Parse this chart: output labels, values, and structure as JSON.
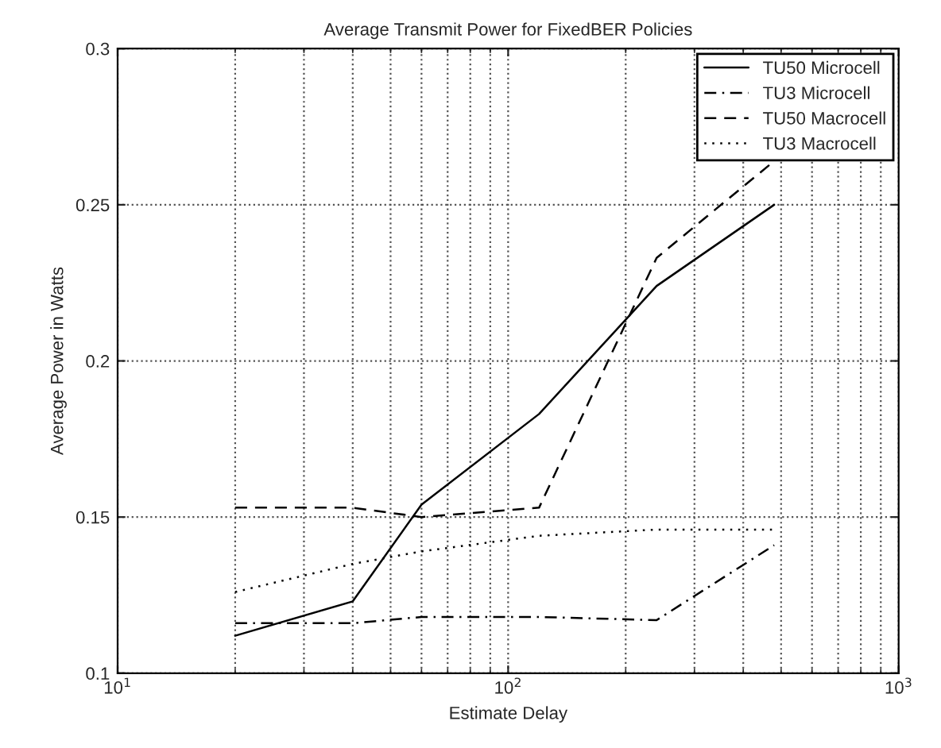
{
  "chart_data": {
    "type": "line",
    "title": "Average Transmit Power for FixedBER Policies",
    "xlabel": "Estimate Delay",
    "ylabel": "Average Power in Watts",
    "x": [
      20,
      40,
      60,
      120,
      240,
      480
    ],
    "series": [
      {
        "name": "TU50 Microcell",
        "color": "#000000",
        "line_style": "solid",
        "values": [
          0.112,
          0.123,
          0.154,
          0.183,
          0.224,
          0.25
        ]
      },
      {
        "name": "TU3 Microcell",
        "color": "#000000",
        "line_style": "dashdot",
        "values": [
          0.116,
          0.116,
          0.118,
          0.118,
          0.117,
          0.141
        ]
      },
      {
        "name": "TU50 Macrocell",
        "color": "#000000",
        "line_style": "dashed",
        "values": [
          0.153,
          0.153,
          0.15,
          0.153,
          0.233,
          0.264
        ]
      },
      {
        "name": "TU3 Macrocell",
        "color": "#000000",
        "line_style": "dotted",
        "values": [
          0.126,
          0.135,
          0.139,
          0.144,
          0.146,
          0.146
        ]
      }
    ],
    "log": "x",
    "xlim": [
      10,
      1000
    ],
    "xticks": [
      {
        "value": 10,
        "label": "10$^{1}$"
      },
      {
        "value": 100,
        "label": "10$^{2}$"
      },
      {
        "value": 1000,
        "label": "10$^{3}$"
      }
    ],
    "ylim": [
      0.1,
      0.3
    ],
    "yticks": [
      0.1,
      0.15,
      0.2,
      0.25,
      0.3
    ],
    "grid": true,
    "legend": "top right",
    "marker": "none"
  }
}
